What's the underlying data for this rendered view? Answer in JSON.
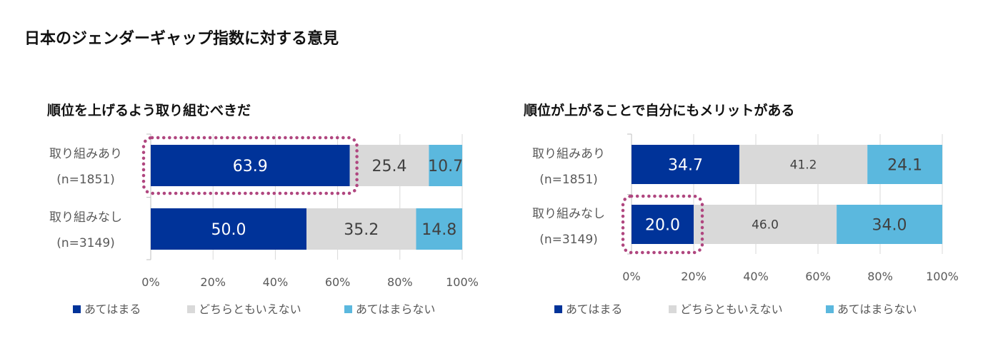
{
  "main_title": "日本のジェンダーギャップ指数に対する意見",
  "colors": {
    "agree": "#003399",
    "neutral": "#d9d9d9",
    "disagree": "#5bb8de",
    "highlight": "#b0467f",
    "axis": "#bfbfbf"
  },
  "chart_data": [
    {
      "type": "bar",
      "orientation": "horizontal",
      "stacked": true,
      "title": "順位を上げるよう取り組むべきだ",
      "categories": [
        "取り組みあり",
        "取り組みなし"
      ],
      "category_sub": [
        "(n=1851)",
        "(n=3149)"
      ],
      "series": [
        {
          "name": "あてはまる",
          "values": [
            63.9,
            50.0
          ]
        },
        {
          "name": "どちらともいえない",
          "values": [
            25.4,
            35.2
          ]
        },
        {
          "name": "あてはまらない",
          "values": [
            10.7,
            14.8
          ]
        }
      ],
      "value_labels": [
        [
          "63.9",
          "25.4",
          "10.7"
        ],
        [
          "50.0",
          "35.2",
          "14.8"
        ]
      ],
      "xlim": [
        0,
        100
      ],
      "ticks": [
        "0%",
        "20%",
        "40%",
        "60%",
        "80%",
        "100%"
      ],
      "highlighted": "取り組みあり / あてはまる",
      "legend": [
        "あてはまる",
        "どちらともいえない",
        "あてはまらない"
      ]
    },
    {
      "type": "bar",
      "orientation": "horizontal",
      "stacked": true,
      "title": "順位が上がることで自分にもメリットがある",
      "categories": [
        "取り組みあり",
        "取り組みなし"
      ],
      "category_sub": [
        "(n=1851)",
        "(n=3149)"
      ],
      "series": [
        {
          "name": "あてはまる",
          "values": [
            34.7,
            20.0
          ]
        },
        {
          "name": "どちらともいえない",
          "values": [
            41.2,
            46.0
          ]
        },
        {
          "name": "あてはまらない",
          "values": [
            24.1,
            34.0
          ]
        }
      ],
      "value_labels": [
        [
          "34.7",
          "41.2",
          "24.1"
        ],
        [
          "20.0",
          "46.0",
          "34.0"
        ]
      ],
      "xlim": [
        0,
        100
      ],
      "ticks": [
        "0%",
        "20%",
        "40%",
        "60%",
        "80%",
        "100%"
      ],
      "highlighted": "取り組みなし / あてはまる",
      "legend": [
        "あてはまる",
        "どちらともいえない",
        "あてはまらない"
      ]
    }
  ]
}
